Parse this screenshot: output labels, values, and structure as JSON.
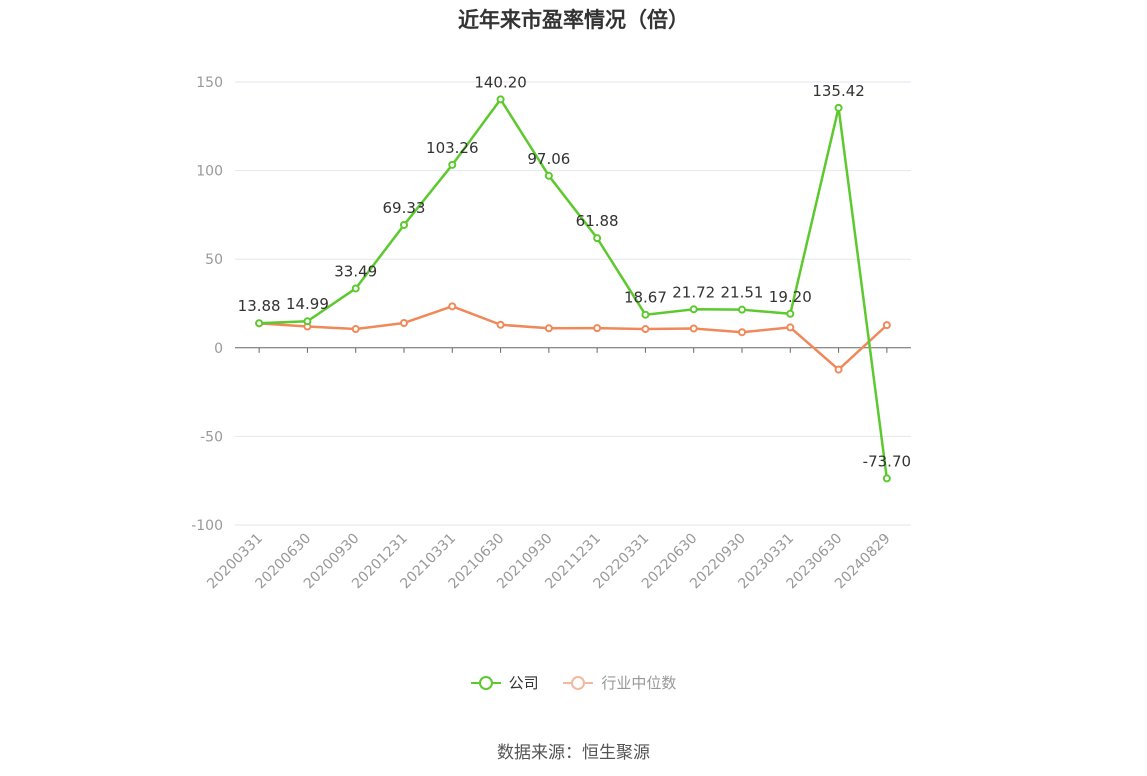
{
  "title": "近年来市盈率情况（倍）",
  "source": "数据来源：恒生聚源",
  "colors": {
    "company": "#5cc92e",
    "industry": "#f0895a",
    "industry_legend": "#f5b89f",
    "grid": "#e6e6ee",
    "axis": "#666666"
  },
  "chart_data": {
    "type": "line",
    "title": "近年来市盈率情况（倍）",
    "categories": [
      "20200331",
      "20200630",
      "20200930",
      "20201231",
      "20210331",
      "20210630",
      "20210930",
      "20211231",
      "20220331",
      "20220630",
      "20220930",
      "20230331",
      "20230630",
      "20240829"
    ],
    "series": [
      {
        "name": "公司",
        "values": [
          13.88,
          14.99,
          33.49,
          69.33,
          103.26,
          140.2,
          97.06,
          61.88,
          18.67,
          21.72,
          21.51,
          19.2,
          135.42,
          -73.7
        ],
        "show_labels": true
      },
      {
        "name": "行业中位数",
        "values": [
          13.8,
          12.0,
          10.6,
          14.0,
          23.4,
          13.0,
          11.0,
          11.1,
          10.6,
          10.9,
          8.8,
          11.5,
          -12.3,
          12.8
        ],
        "show_labels": false
      }
    ],
    "value_labels": [
      "13.88",
      "14.99",
      "33.49",
      "69.33",
      "103.26",
      "140.20",
      "97.06",
      "61.88",
      "18.67",
      "21.72",
      "21.51",
      "19.20",
      "135.42",
      "-73.70"
    ],
    "y_ticks": [
      150,
      100,
      50,
      0,
      -50,
      -100
    ],
    "ylim": [
      -100,
      150
    ],
    "grid": true,
    "legend_position": "bottom"
  },
  "legend": [
    {
      "label": "公司"
    },
    {
      "label": "行业中位数"
    }
  ]
}
